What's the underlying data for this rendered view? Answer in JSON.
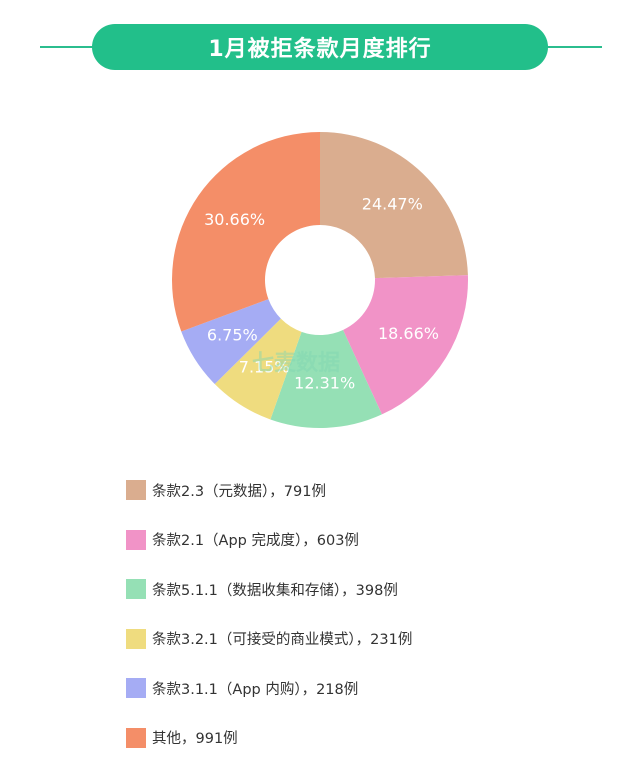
{
  "header": {
    "title": "1月被拒条款月度排行"
  },
  "watermark": {
    "text": "七麦数据"
  },
  "chart_data": {
    "type": "pie",
    "donut": true,
    "slices": [
      {
        "label": "条款2.3（元数据），791例",
        "value": 24.47,
        "value_label": "24.47%",
        "count": 791,
        "color": "#daad8f"
      },
      {
        "label": "条款2.1（App 完成度），603例",
        "value": 18.66,
        "value_label": "18.66%",
        "count": 603,
        "color": "#f193c7"
      },
      {
        "label": "条款5.1.1（数据收集和存储），398例",
        "value": 12.31,
        "value_label": "12.31%",
        "count": 398,
        "color": "#95e0b5"
      },
      {
        "label": "条款3.2.1（可接受的商业模式），231例",
        "value": 7.15,
        "value_label": "7.15%",
        "count": 231,
        "color": "#efdc7f"
      },
      {
        "label": "条款3.1.1（App 内购），218例",
        "value": 6.75,
        "value_label": "6.75%",
        "count": 218,
        "color": "#a5acf4"
      },
      {
        "label": "其他，991例",
        "value": 30.66,
        "value_label": "30.66%",
        "count": 991,
        "color": "#f48e68"
      }
    ]
  }
}
